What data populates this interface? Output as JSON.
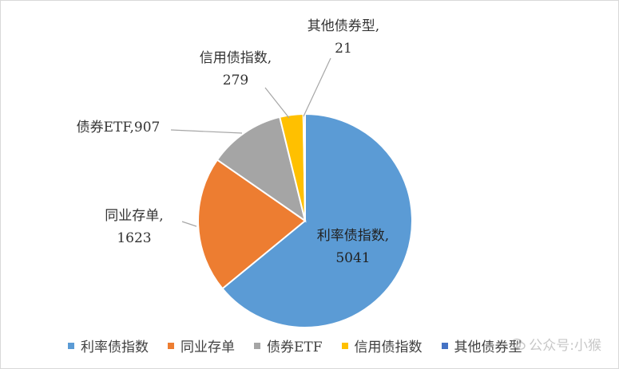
{
  "chart_data": {
    "type": "pie",
    "title": "",
    "slices": [
      {
        "name": "利率债指数",
        "value": 5041,
        "color": "#5B9BD5",
        "label_line1": "利率债指数,",
        "label_line2": "5041"
      },
      {
        "name": "同业存单",
        "value": 1623,
        "color": "#ED7D31",
        "label_line1": "同业存单,",
        "label_line2": "1623"
      },
      {
        "name": "债券ETF",
        "value": 907,
        "color": "#A5A5A5",
        "label_line1": "债券ETF,907",
        "label_line2": ""
      },
      {
        "name": "信用债指数",
        "value": 279,
        "color": "#FFC000",
        "label_line1": "信用债指数,",
        "label_line2": "279"
      },
      {
        "name": "其他债券型",
        "value": 21,
        "color": "#4472C4",
        "label_line1": "其他债券型,",
        "label_line2": "21"
      }
    ],
    "legend_position": "bottom"
  },
  "watermark": {
    "text": "公众号:小猴"
  }
}
